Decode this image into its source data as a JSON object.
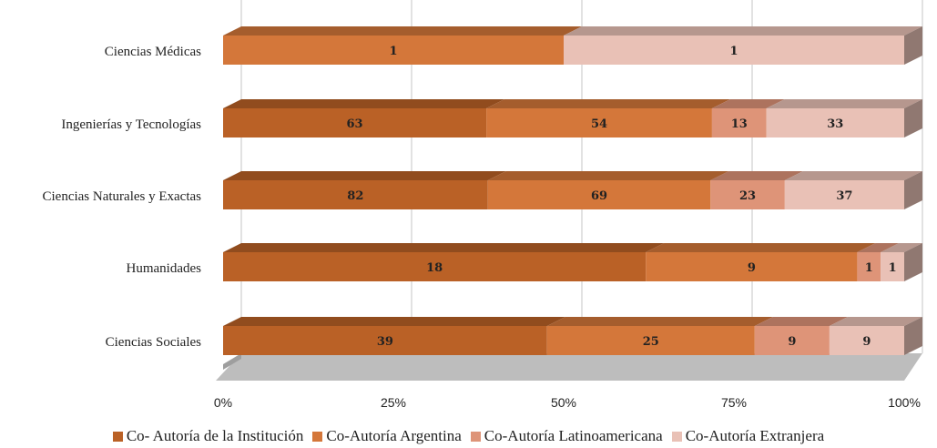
{
  "chart_data": {
    "type": "bar",
    "orientation": "horizontal",
    "stacked": "percent",
    "categories": [
      "Ciencias Médicas",
      "Ingenierías y Tecnologías",
      "Ciencias Naturales y Exactas",
      "Humanidades",
      "Ciencias Sociales"
    ],
    "series": [
      {
        "name": "Co- Autoría de la Institución",
        "color": "#BA6126",
        "values": [
          0,
          63,
          82,
          18,
          39
        ]
      },
      {
        "name": "Co-Autoría Argentina",
        "color": "#D4773A",
        "values": [
          1,
          54,
          69,
          9,
          25
        ]
      },
      {
        "name": "Co-Autoría Latinoamericana",
        "color": "#DE9478",
        "values": [
          0,
          13,
          23,
          1,
          9
        ]
      },
      {
        "name": "Co-Autoría Extranjera",
        "color": "#E9C1B6",
        "values": [
          1,
          33,
          37,
          1,
          9
        ]
      }
    ],
    "x_ticks": [
      "0%",
      "25%",
      "50%",
      "75%",
      "100%"
    ],
    "xlim": [
      0,
      100
    ],
    "grid": true,
    "legend_position": "bottom",
    "three_d": true
  }
}
